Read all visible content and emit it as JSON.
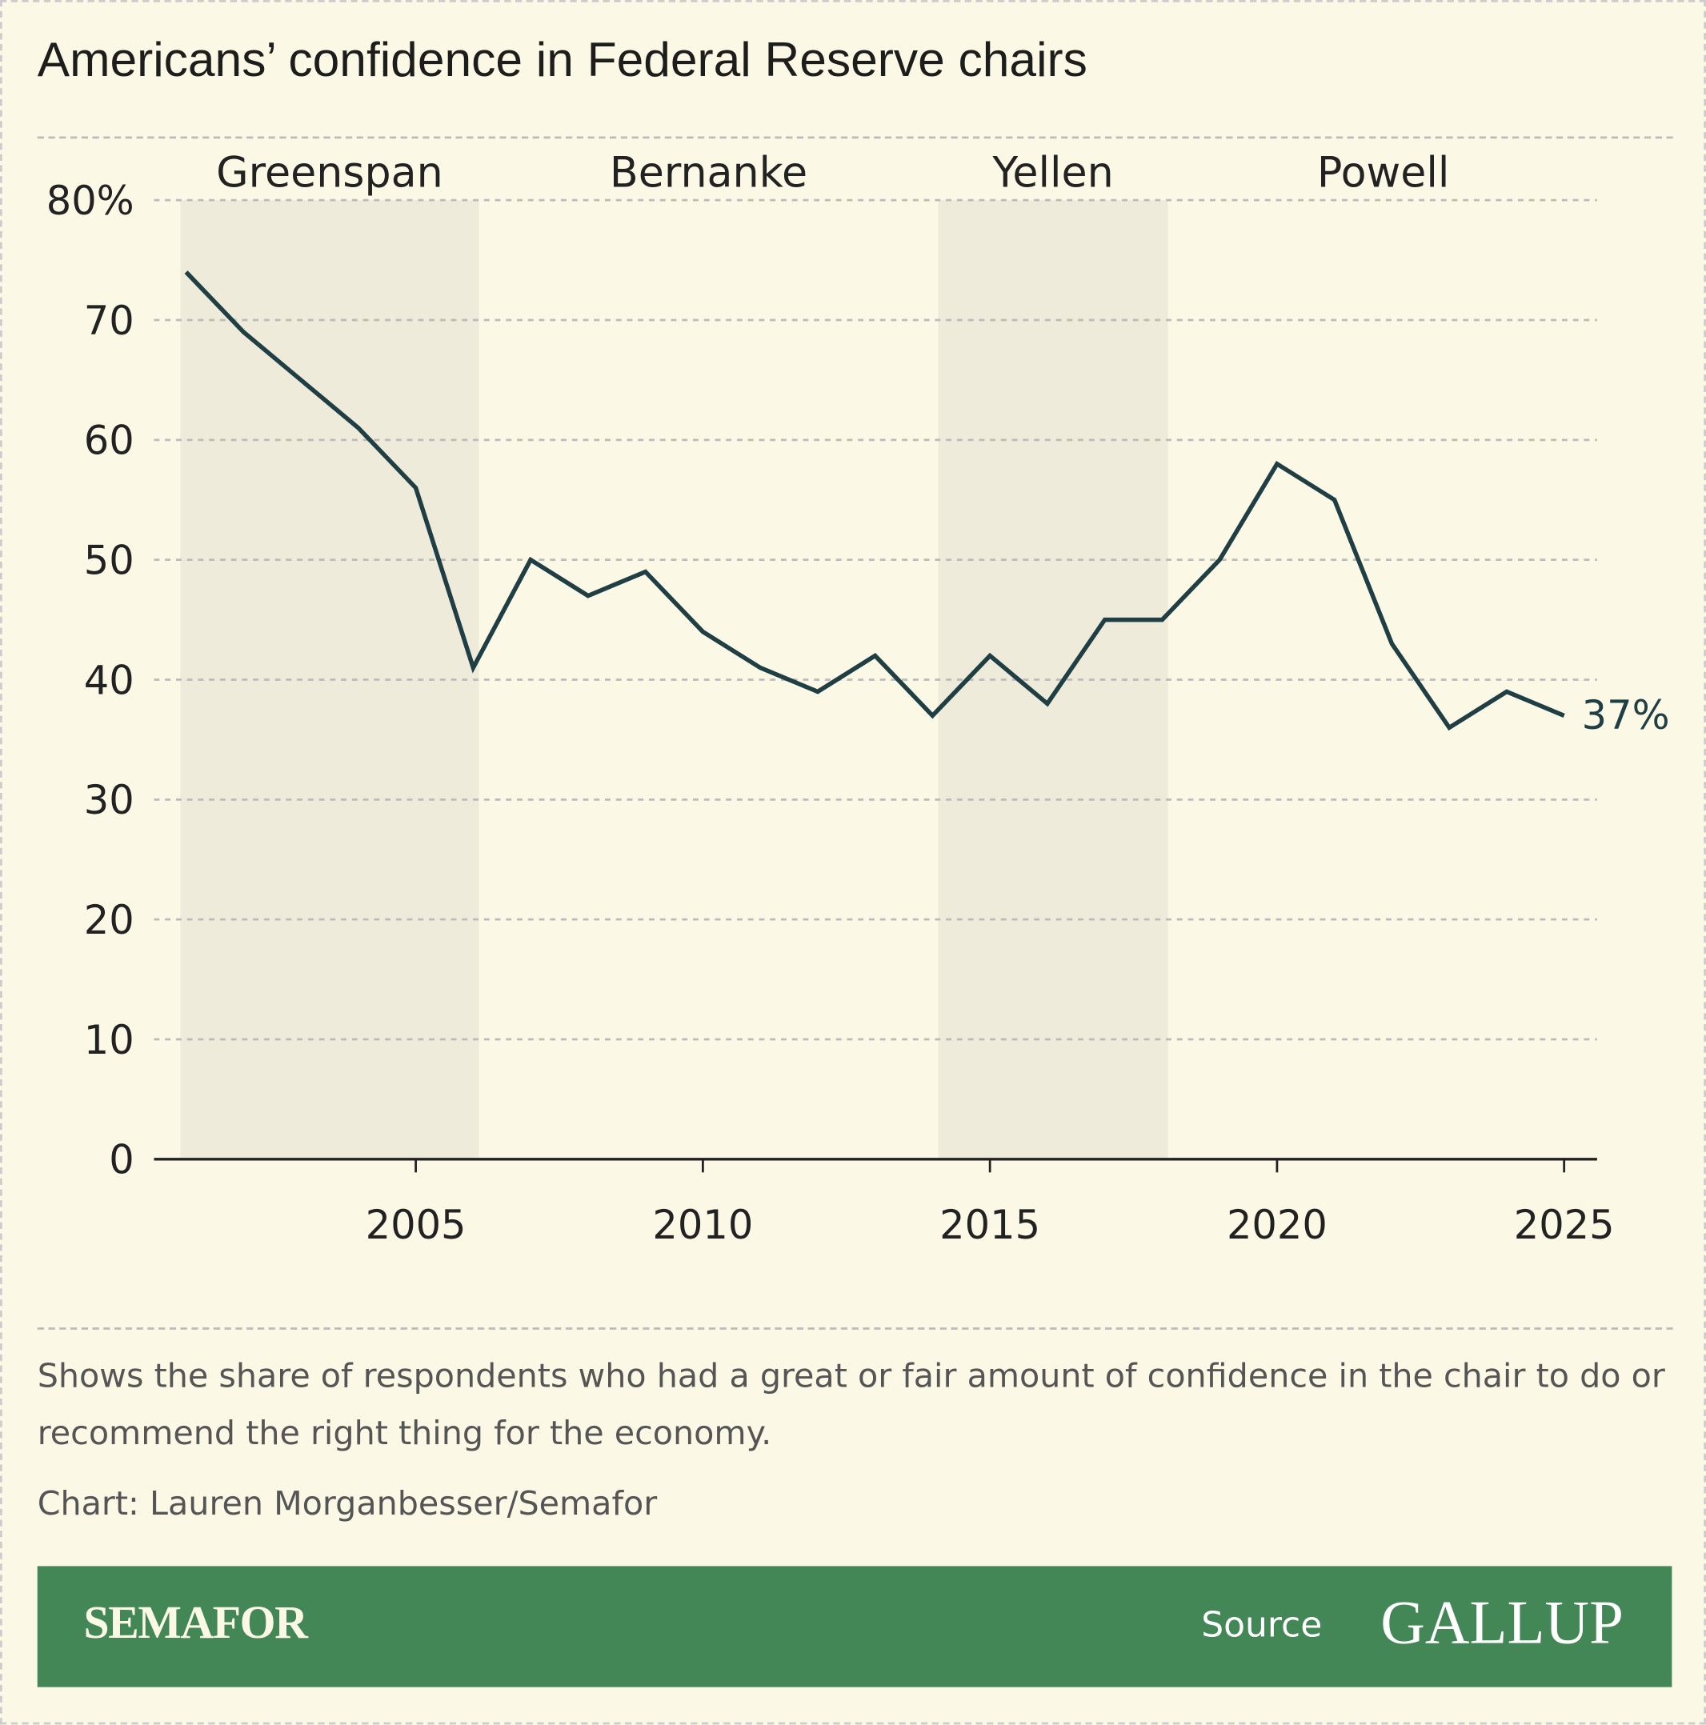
{
  "title": "Americans’ confidence in Federal Reserve chairs",
  "chart_data": {
    "type": "line",
    "x": [
      2001,
      2002,
      2003,
      2004,
      2005,
      2006,
      2007,
      2008,
      2009,
      2010,
      2011,
      2012,
      2013,
      2014,
      2015,
      2016,
      2017,
      2018,
      2019,
      2020,
      2021,
      2022,
      2023,
      2024,
      2025
    ],
    "series": [
      {
        "values": [
          74,
          69,
          65,
          61,
          56,
          41,
          50,
          47,
          49,
          44,
          41,
          39,
          42,
          37,
          42,
          38,
          45,
          45,
          50,
          58,
          55,
          43,
          36,
          39,
          37
        ],
        "color": "#1f3f45"
      }
    ],
    "ylim": [
      0,
      80
    ],
    "y_ticks": [
      "0",
      "10",
      "20",
      "30",
      "40",
      "50",
      "60",
      "70",
      "80%"
    ],
    "y_tick_values": [
      0,
      10,
      20,
      30,
      40,
      50,
      60,
      70,
      80
    ],
    "x_ticks": [
      "2005",
      "2010",
      "2015",
      "2020",
      "2025"
    ],
    "x_tick_values": [
      2005,
      2010,
      2015,
      2020,
      2025
    ],
    "grid": true,
    "end_label": "37%",
    "periods": [
      {
        "name": "Greenspan",
        "start": 2000.9,
        "end": 2006.1,
        "shaded": true
      },
      {
        "name": "Bernanke",
        "start": 2006.1,
        "end": 2014.1,
        "shaded": false
      },
      {
        "name": "Yellen",
        "start": 2014.1,
        "end": 2018.1,
        "shaded": true
      },
      {
        "name": "Powell",
        "start": 2018.1,
        "end": 2025.6,
        "shaded": false
      }
    ],
    "shade_color": "#efebdb"
  },
  "note": "Shows the share of respondents who had a great or fair amount of confidence in the chair to do or recommend the right thing for the economy.",
  "credit": "Chart: Lauren Morganbesser/Semafor",
  "footer": {
    "brand": "SEMAFOR",
    "source_label": "Source",
    "source_logo": "GALLUP",
    "color": "#428755"
  }
}
